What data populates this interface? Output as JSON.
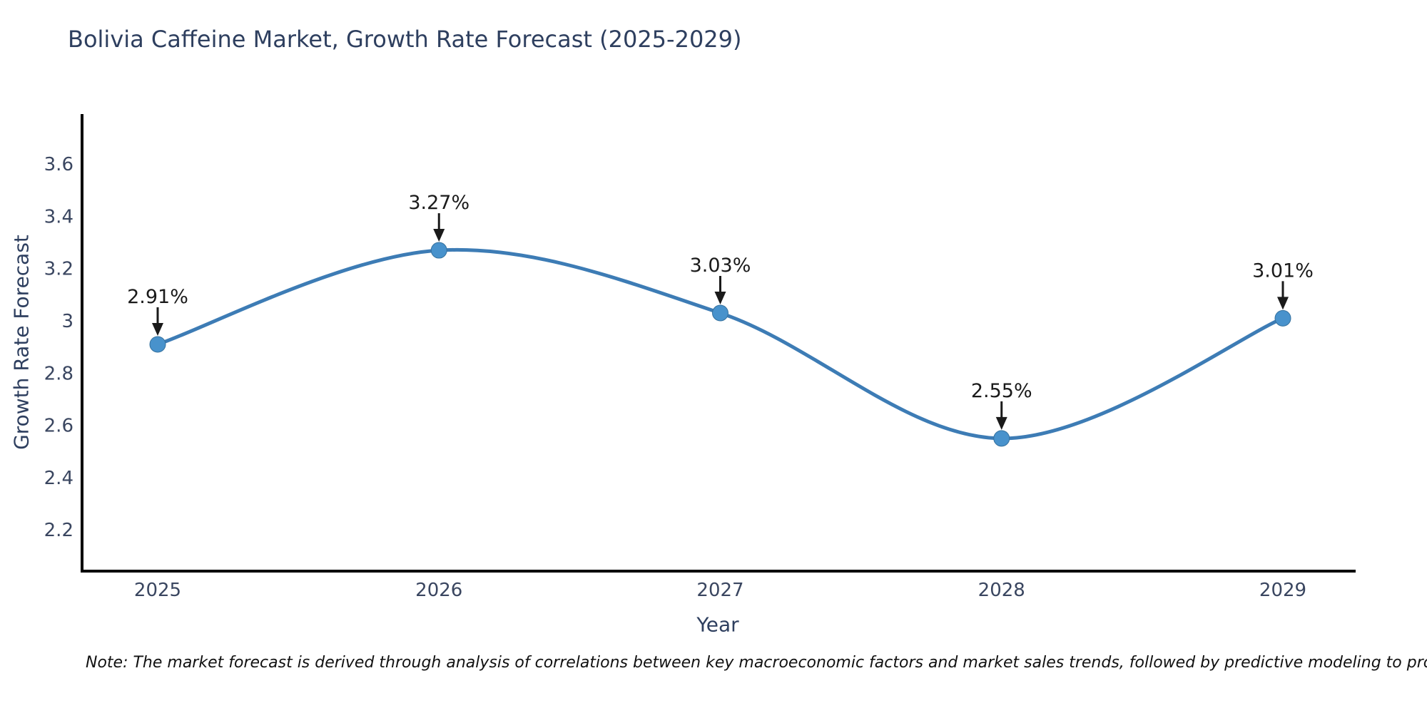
{
  "title": "Bolivia Caffeine Market, Growth Rate Forecast (2025-2029)",
  "note": "Note: The market forecast is derived through analysis of correlations between key macroeconomic factors and market sales trends, followed by predictive modeling to project future sales",
  "chart_data": {
    "type": "line",
    "title": "Bolivia Caffeine Market, Growth Rate Forecast (2025-2029)",
    "xlabel": "Year",
    "ylabel": "Growth Rate Forecast",
    "x": [
      "2025",
      "2026",
      "2027",
      "2028",
      "2029"
    ],
    "series": [
      {
        "name": "Growth Rate Forecast",
        "values": [
          2.91,
          3.27,
          3.03,
          2.55,
          3.01
        ]
      }
    ],
    "point_labels": [
      "2.91%",
      "3.27%",
      "3.03%",
      "2.55%",
      "3.01%"
    ],
    "y_ticks": [
      2.2,
      2.4,
      2.6,
      2.8,
      3,
      3.2,
      3.4,
      3.6
    ],
    "ylim": [
      2.042,
      3.786
    ],
    "grid": false,
    "legend": "none",
    "smooth_curve": true,
    "colors": {
      "line": "#3d7cb5",
      "marker": "#4892cc",
      "marker_edge": "#35719e",
      "axis": "#000000",
      "annotation": "#1a1a1a",
      "text": "#2e3f5f",
      "tick_text": "#3a4660",
      "background": "#ffffff"
    }
  }
}
